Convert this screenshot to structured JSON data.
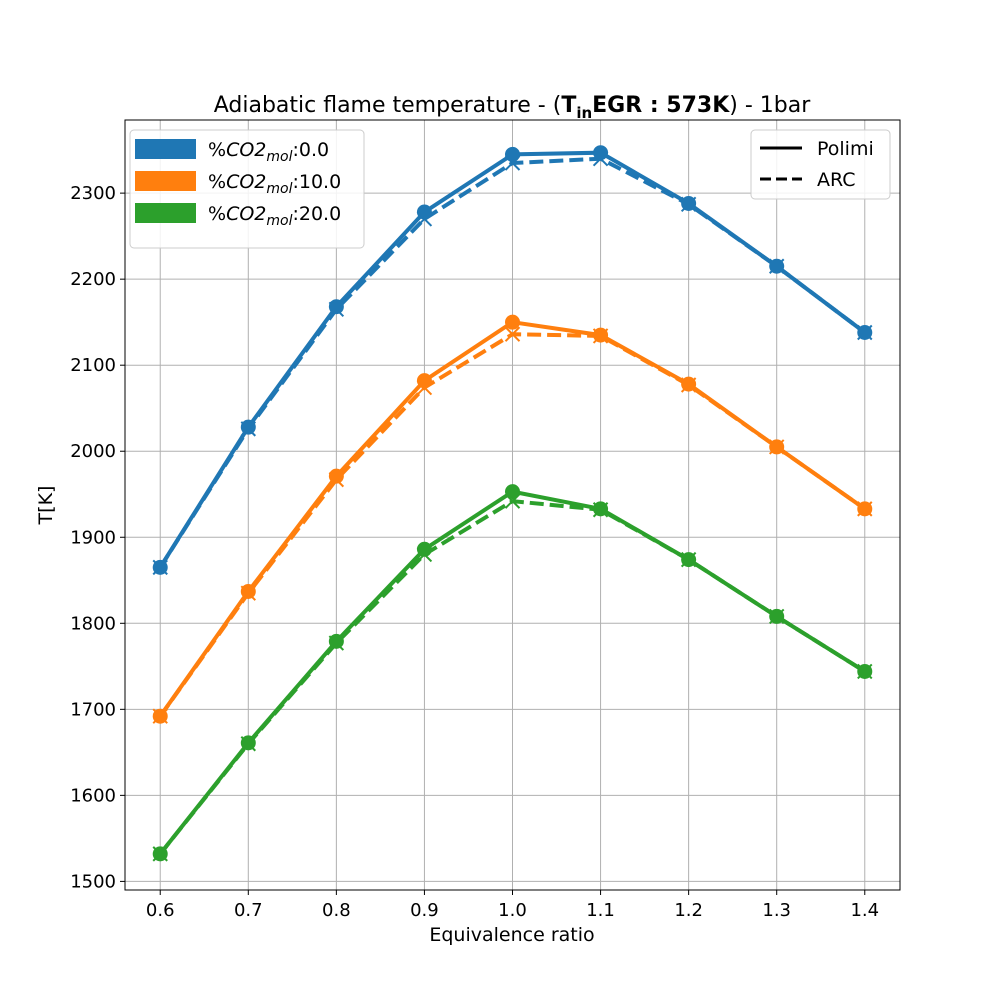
{
  "chart_data": {
    "type": "line",
    "title": {
      "prefix": "Adiabatic flame temperature - (",
      "bold_main": "T",
      "bold_sub": "in",
      "bold_rest": "EGR : 573K",
      "suffix": ") - 1bar"
    },
    "xlabel": "Equivalence ratio",
    "ylabel": "T[K]",
    "x": [
      0.6,
      0.7,
      0.8,
      0.9,
      1.0,
      1.1,
      1.2,
      1.3,
      1.4
    ],
    "xlim": [
      0.56,
      1.44
    ],
    "ylim": [
      1490,
      2385
    ],
    "x_ticks": [
      "0.6",
      "0.7",
      "0.8",
      "0.9",
      "1.0",
      "1.1",
      "1.2",
      "1.3",
      "1.4"
    ],
    "y_ticks": [
      1500,
      1600,
      1700,
      1800,
      1900,
      2000,
      2100,
      2200,
      2300
    ],
    "grid": true,
    "series": [
      {
        "name_prefix": "%",
        "name_base": "CO2",
        "name_sub": "mol",
        "name_suffix": ":0.0",
        "color": "#1f77b4",
        "polimi": [
          1865,
          2028,
          2168,
          2278,
          2345,
          2347,
          2288,
          2215,
          2138
        ],
        "arc": [
          1865,
          2026,
          2165,
          2270,
          2335,
          2340,
          2287,
          2215,
          2138
        ]
      },
      {
        "name_prefix": "%",
        "name_base": "CO2",
        "name_sub": "mol",
        "name_suffix": ":10.0",
        "color": "#ff7f0e",
        "polimi": [
          1692,
          1837,
          1971,
          2082,
          2150,
          2135,
          2078,
          2005,
          1933
        ],
        "arc": [
          1692,
          1835,
          1967,
          2074,
          2136,
          2134,
          2077,
          2005,
          1933
        ]
      },
      {
        "name_prefix": "%",
        "name_base": "CO2",
        "name_sub": "mol",
        "name_suffix": ":20.0",
        "color": "#2ca02c",
        "polimi": [
          1532,
          1661,
          1779,
          1886,
          1953,
          1933,
          1874,
          1808,
          1744
        ],
        "arc": [
          1532,
          1660,
          1777,
          1880,
          1942,
          1932,
          1874,
          1808,
          1744
        ]
      }
    ],
    "line_style_legend": [
      {
        "label": "Polimi",
        "style": "solid"
      },
      {
        "label": "ARC",
        "style": "dashed"
      }
    ],
    "color_legend_position": "top-left",
    "style_legend_position": "top-right"
  }
}
